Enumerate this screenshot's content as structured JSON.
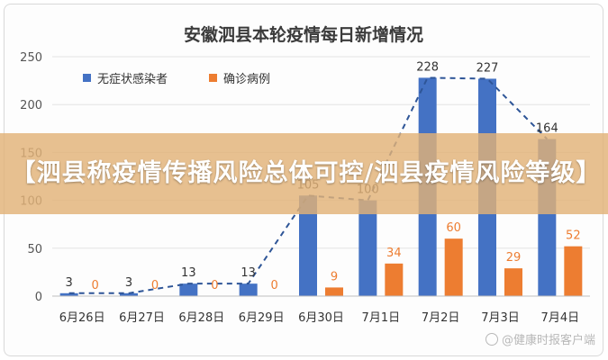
{
  "chart_data": {
    "type": "bar",
    "title": "安徽泗县本轮疫情每日新增情况",
    "categories": [
      "6月26日",
      "6月27日",
      "6月28日",
      "6月29日",
      "6月30日",
      "7月1日",
      "7月2日",
      "7月3日",
      "7月4日"
    ],
    "series": [
      {
        "name": "无症状感染者",
        "color": "#4472c4",
        "values": [
          3,
          3,
          13,
          13,
          105,
          100,
          228,
          227,
          164
        ]
      },
      {
        "name": "确诊病例",
        "color": "#ed7d31",
        "values": [
          0,
          0,
          0,
          0,
          9,
          34,
          60,
          29,
          52
        ]
      }
    ],
    "trendline": {
      "series": "无症状感染者",
      "style": "dashed"
    },
    "ylim": [
      0,
      250
    ],
    "yticks": [
      0,
      50,
      100,
      150,
      200,
      250
    ],
    "grid": true,
    "legend": "top-left"
  },
  "overlay": {
    "banner_text": "【泗县称疫情传播风险总体可控/泗县疫情风险等级】",
    "banner_color": "#e2b278"
  },
  "watermark": {
    "text": "@健康时报客户端"
  }
}
